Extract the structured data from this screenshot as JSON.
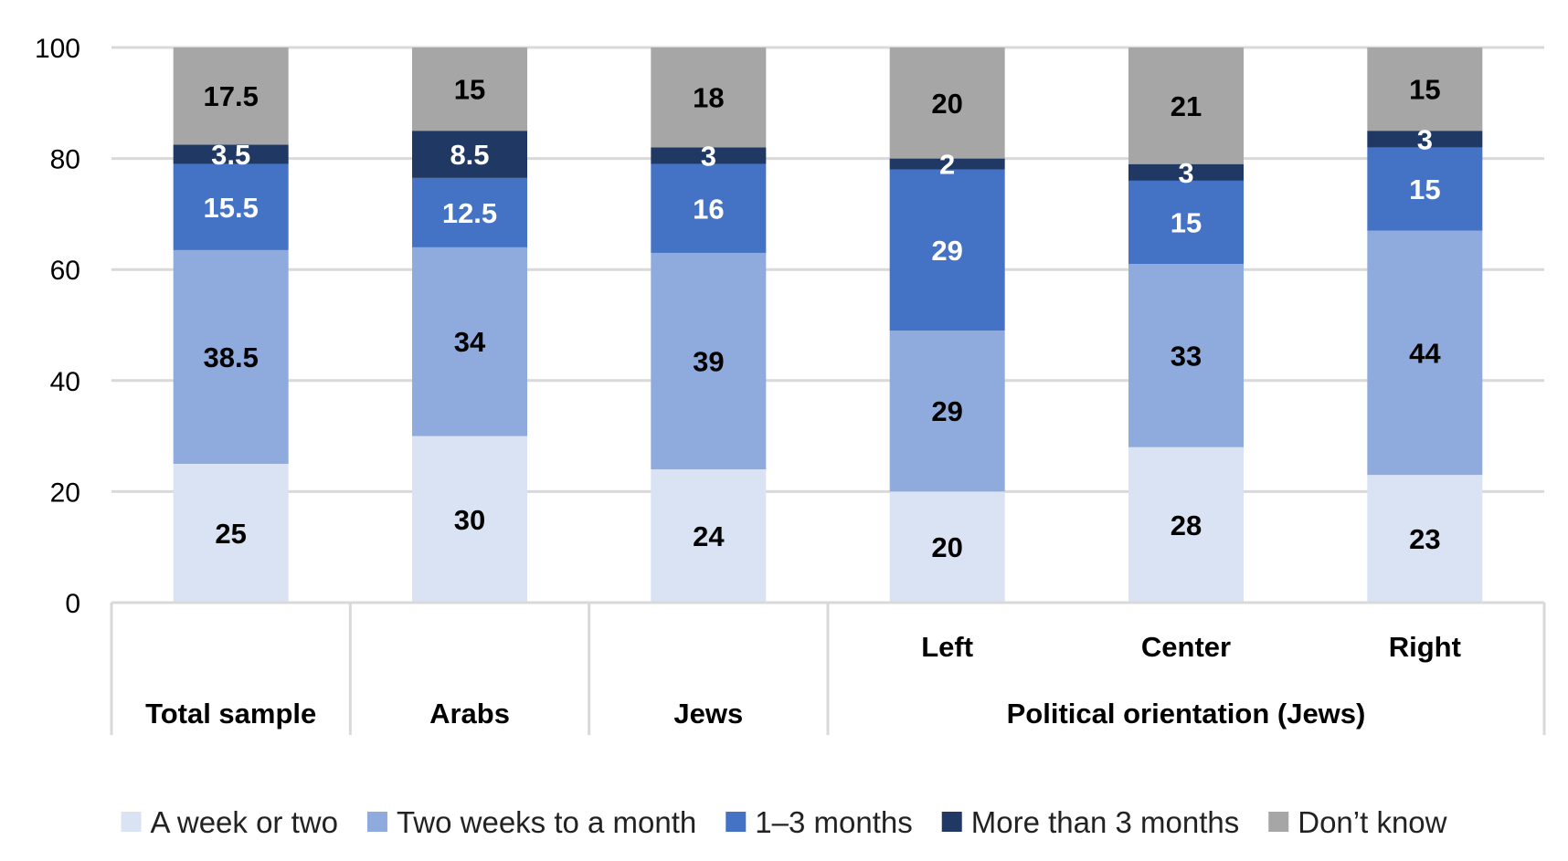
{
  "chart_data": {
    "type": "bar",
    "stacked": true,
    "categories": [
      "Total sample",
      "Arabs",
      "Jews",
      "Left",
      "Center",
      "Right"
    ],
    "group_labels": [
      {
        "label": "Total sample",
        "span": [
          0,
          0
        ]
      },
      {
        "label": "Arabs",
        "span": [
          1,
          1
        ]
      },
      {
        "label": "Jews",
        "span": [
          2,
          2
        ]
      },
      {
        "label": "Political orientation (Jews)",
        "span": [
          3,
          5
        ]
      }
    ],
    "subcategory_labels": [
      "",
      "",
      "",
      "Left",
      "Center",
      "Right"
    ],
    "series": [
      {
        "name": "A week or two",
        "color": "#dae3f3",
        "label_color": "#000000",
        "values": [
          25,
          30,
          24,
          20,
          28,
          23
        ]
      },
      {
        "name": "Two weeks to a month",
        "color": "#8faadc",
        "label_color": "#000000",
        "values": [
          38.5,
          34,
          39,
          29,
          33,
          44
        ]
      },
      {
        "name": "1–3 months",
        "color": "#4472c4",
        "label_color": "#ffffff",
        "values": [
          15.5,
          12.5,
          16,
          29,
          15,
          15
        ]
      },
      {
        "name": "More than 3 months",
        "color": "#203864",
        "label_color": "#ffffff",
        "values": [
          3.5,
          8.5,
          3,
          2,
          3,
          3
        ]
      },
      {
        "name": "Don’t know",
        "color": "#a6a6a6",
        "label_color": "#000000",
        "values": [
          17.5,
          15,
          18,
          20,
          21,
          15
        ]
      }
    ],
    "value_labels": [
      [
        "25",
        "30",
        "24",
        "20",
        "28",
        "23"
      ],
      [
        "38.5",
        "34",
        "39",
        "29",
        "33",
        "44"
      ],
      [
        "15.5",
        "12.5",
        "16",
        "29",
        "15",
        "15"
      ],
      [
        "3.5",
        "8.5",
        "3",
        "2",
        "3",
        "3"
      ],
      [
        "17.5",
        "15",
        "18",
        "20",
        "21",
        "15"
      ]
    ],
    "y_ticks": [
      "0",
      "20",
      "40",
      "60",
      "80",
      "100"
    ],
    "ylim": [
      0,
      100
    ],
    "grid": true,
    "legend_position": "bottom",
    "title": "",
    "xlabel": "",
    "ylabel": ""
  }
}
